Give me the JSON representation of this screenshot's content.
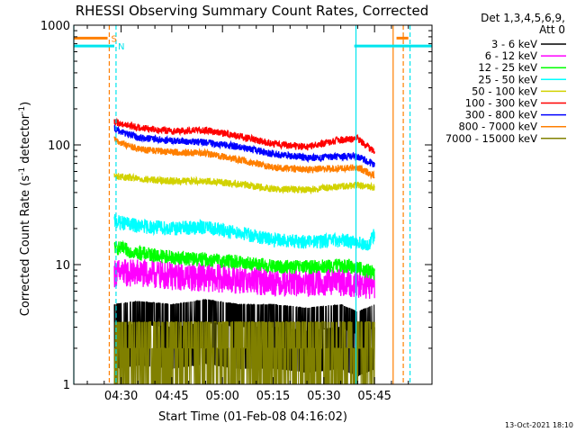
{
  "chart_data": {
    "type": "line",
    "title": "RHESSI Observing Summary Count Rates, Corrected",
    "xlabel": "Start Time (01-Feb-08 04:16:02)",
    "ylabel_main": "Corrected Count Rate (s",
    "ylabel_sup1": "-1",
    "ylabel_mid": " detector",
    "ylabel_sup2": "-1",
    "ylabel_end": ")",
    "y_scale": "log",
    "ylim": [
      1,
      1000
    ],
    "xlim_minutes": [
      256,
      362
    ],
    "x_ticks": [
      {
        "t": 270,
        "label": "04:30"
      },
      {
        "t": 285,
        "label": "04:45"
      },
      {
        "t": 300,
        "label": "05:00"
      },
      {
        "t": 315,
        "label": "05:15"
      },
      {
        "t": 330,
        "label": "05:30"
      },
      {
        "t": 345,
        "label": "05:45"
      }
    ],
    "y_ticks": [
      {
        "v": 1,
        "label": "1"
      },
      {
        "v": 10,
        "label": "10"
      },
      {
        "v": 100,
        "label": "100"
      },
      {
        "v": 1000,
        "label": "1000"
      }
    ],
    "legend_header": [
      "Det 1,3,4,5,6,9,",
      "Att 0"
    ],
    "legend_position": "top-right, outside plot",
    "flags": [
      {
        "label": "S",
        "color": "#ff7f00",
        "y_value": 780,
        "intervals": [
          [
            256,
            266
          ],
          [
            351.5,
            355
          ]
        ]
      },
      {
        "label": "N",
        "color": "#00e5ee",
        "y_value": 670,
        "intervals": [
          [
            256,
            268
          ],
          [
            339,
            362
          ]
        ]
      }
    ],
    "vertical_markers": [
      {
        "t": 256,
        "color": "#00e5ee",
        "style": "solid"
      },
      {
        "t": 266.5,
        "color": "#ff7f00",
        "style": "dashed"
      },
      {
        "t": 268.5,
        "color": "#00e5ee",
        "style": "dashed"
      },
      {
        "t": 339.5,
        "color": "#00e5ee",
        "style": "solid"
      },
      {
        "t": 350.5,
        "color": "#ff7f00",
        "style": "solid"
      },
      {
        "t": 353.5,
        "color": "#ff7f00",
        "style": "dashed"
      },
      {
        "t": 355.5,
        "color": "#00e5ee",
        "style": "dashed"
      }
    ],
    "series": [
      {
        "name": "3 - 6 keV",
        "color": "#000000",
        "points": [
          [
            268,
            3
          ],
          [
            275,
            3.2
          ],
          [
            285,
            3
          ],
          [
            295,
            3.3
          ],
          [
            305,
            3
          ],
          [
            315,
            3
          ],
          [
            325,
            2.8
          ],
          [
            335,
            3
          ],
          [
            340,
            2.6
          ],
          [
            345,
            3
          ]
        ],
        "noise": 0.25
      },
      {
        "name": "6 - 12 keV",
        "color": "#ff00ff",
        "points": [
          [
            268,
            8.5
          ],
          [
            275,
            8.5
          ],
          [
            285,
            8
          ],
          [
            295,
            7.8
          ],
          [
            305,
            7.5
          ],
          [
            315,
            7.2
          ],
          [
            325,
            7
          ],
          [
            335,
            7.2
          ],
          [
            340,
            7
          ],
          [
            345,
            6.5
          ]
        ],
        "noise": 0.12
      },
      {
        "name": "12 - 25 keV",
        "color": "#00ff00",
        "points": [
          [
            268,
            14
          ],
          [
            275,
            12.5
          ],
          [
            285,
            11.5
          ],
          [
            295,
            11
          ],
          [
            305,
            10.5
          ],
          [
            315,
            9.6
          ],
          [
            325,
            9.5
          ],
          [
            335,
            9.8
          ],
          [
            340,
            9.5
          ],
          [
            345,
            8.5
          ]
        ],
        "noise": 0.06
      },
      {
        "name": "25 - 50 keV",
        "color": "#00ffff",
        "points": [
          [
            268,
            23
          ],
          [
            275,
            21
          ],
          [
            285,
            20
          ],
          [
            295,
            20.5
          ],
          [
            305,
            18.5
          ],
          [
            315,
            16
          ],
          [
            325,
            15.5
          ],
          [
            335,
            16
          ],
          [
            340,
            15.5
          ],
          [
            343,
            14
          ],
          [
            345,
            18
          ]
        ],
        "noise": 0.06
      },
      {
        "name": "50 - 100 keV",
        "color": "#d2d200",
        "points": [
          [
            268,
            55
          ],
          [
            275,
            52
          ],
          [
            285,
            50
          ],
          [
            295,
            50
          ],
          [
            305,
            47
          ],
          [
            315,
            43
          ],
          [
            325,
            42
          ],
          [
            335,
            45
          ],
          [
            340,
            46
          ],
          [
            345,
            44
          ]
        ],
        "noise": 0.03
      },
      {
        "name": "100 - 300 keV",
        "color": "#ff0000",
        "points": [
          [
            268,
            155
          ],
          [
            275,
            140
          ],
          [
            285,
            130
          ],
          [
            295,
            133
          ],
          [
            305,
            118
          ],
          [
            315,
            102
          ],
          [
            325,
            96
          ],
          [
            335,
            110
          ],
          [
            340,
            112
          ],
          [
            345,
            88
          ]
        ],
        "noise": 0.03
      },
      {
        "name": "300 - 800 keV",
        "color": "#0000ff",
        "points": [
          [
            268,
            135
          ],
          [
            275,
            115
          ],
          [
            285,
            108
          ],
          [
            295,
            105
          ],
          [
            305,
            96
          ],
          [
            315,
            84
          ],
          [
            325,
            78
          ],
          [
            335,
            80
          ],
          [
            340,
            80
          ],
          [
            345,
            68
          ]
        ],
        "noise": 0.03
      },
      {
        "name": "800 - 7000 keV",
        "color": "#ff7f00",
        "points": [
          [
            268,
            110
          ],
          [
            275,
            92
          ],
          [
            285,
            87
          ],
          [
            295,
            85
          ],
          [
            305,
            75
          ],
          [
            315,
            65
          ],
          [
            325,
            62
          ],
          [
            335,
            64
          ],
          [
            340,
            65
          ],
          [
            345,
            55
          ]
        ],
        "noise": 0.03
      },
      {
        "name": "7000 - 15000 keV",
        "color": "#808000",
        "points": [
          [
            268,
            2
          ],
          [
            275,
            2
          ],
          [
            285,
            2
          ],
          [
            295,
            2
          ],
          [
            305,
            2
          ],
          [
            315,
            2
          ],
          [
            325,
            2
          ],
          [
            335,
            2
          ],
          [
            340,
            2
          ],
          [
            345,
            2
          ]
        ],
        "noise": 0.3
      }
    ]
  },
  "footer": {
    "timestamp": "13-Oct-2021 18:10"
  }
}
